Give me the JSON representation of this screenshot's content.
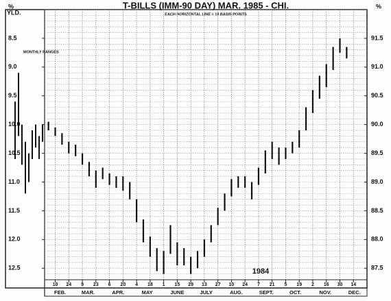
{
  "chart_data": {
    "type": "range_bar",
    "title": "T-BILLS (IMM-90 DAY) MAR. 1985 - CHI.",
    "subtitle": "EACH HORIZONTAL LINE = 10 BASIS POINTS",
    "y_label": [
      "%",
      "YLD."
    ],
    "y2_label": "%",
    "annotation": "1984",
    "color": "#111111",
    "grid": true,
    "grid_step": 0.1,
    "ylim": [
      12.7,
      8.0
    ],
    "yticks": [
      8.5,
      {
        "value": 9,
        "label": "9.0"
      },
      9.5,
      {
        "value": 10,
        "label": "10.0"
      },
      10.5,
      {
        "value": 11,
        "label": "11.0"
      },
      11.5,
      {
        "value": 12,
        "label": "12.0"
      },
      12.5
    ],
    "y2lim": [
      87.3,
      92.0
    ],
    "y2ticks": [
      91.5,
      {
        "value": 91,
        "label": "91.0"
      },
      90.5,
      {
        "value": 90,
        "label": "90.0"
      },
      89.5,
      {
        "value": 89,
        "label": "89.0"
      },
      88.5,
      {
        "value": 88,
        "label": "88.0"
      },
      87.5
    ],
    "xlim": [
      "1984-01-30",
      "1984-12-28"
    ],
    "xticks": [
      {
        "value": "1984-02-10",
        "label": "10"
      },
      {
        "value": "1984-02-24",
        "label": "24"
      },
      {
        "value": "1984-03-09",
        "label": "9"
      },
      {
        "value": "1984-03-23",
        "label": "23"
      },
      {
        "value": "1984-04-06",
        "label": "6"
      },
      {
        "value": "1984-04-20",
        "label": "20"
      },
      {
        "value": "1984-05-04",
        "label": "4"
      },
      {
        "value": "1984-05-18",
        "label": "18"
      },
      {
        "value": "1984-06-01",
        "label": "1"
      },
      {
        "value": "1984-06-15",
        "label": "15"
      },
      {
        "value": "1984-06-29",
        "label": "29"
      },
      {
        "value": "1984-07-13",
        "label": "13"
      },
      {
        "value": "1984-07-27",
        "label": "27"
      },
      {
        "value": "1984-08-10",
        "label": "10"
      },
      {
        "value": "1984-08-24",
        "label": "24"
      },
      {
        "value": "1984-09-07",
        "label": "7"
      },
      {
        "value": "1984-09-21",
        "label": "21"
      },
      {
        "value": "1984-10-05",
        "label": "5"
      },
      {
        "value": "1984-10-19",
        "label": "19"
      },
      {
        "value": "1984-11-02",
        "label": "2"
      },
      {
        "value": "1984-11-16",
        "label": "16"
      },
      {
        "value": "1984-11-30",
        "label": "30"
      },
      {
        "value": "1984-12-14",
        "label": "14"
      }
    ],
    "month_labels": [
      "FEB.",
      "MAR.",
      "APR.",
      "MAY",
      "JUNE",
      "JULY",
      "AUG.",
      "SEPT.",
      "OCT.",
      "NOV.",
      "DEC."
    ],
    "x": [
      "1984-02-03",
      "1984-02-10",
      "1984-02-17",
      "1984-02-24",
      "1984-03-02",
      "1984-03-09",
      "1984-03-16",
      "1984-03-23",
      "1984-03-30",
      "1984-04-06",
      "1984-04-13",
      "1984-04-20",
      "1984-04-27",
      "1984-05-04",
      "1984-05-11",
      "1984-05-18",
      "1984-05-25",
      "1984-06-01",
      "1984-06-08",
      "1984-06-15",
      "1984-06-22",
      "1984-06-29",
      "1984-07-06",
      "1984-07-13",
      "1984-07-20",
      "1984-07-27",
      "1984-08-03",
      "1984-08-10",
      "1984-08-17",
      "1984-08-24",
      "1984-08-31",
      "1984-09-07",
      "1984-09-14",
      "1984-09-21",
      "1984-09-28",
      "1984-10-05",
      "1984-10-12",
      "1984-10-19",
      "1984-10-26",
      "1984-11-02",
      "1984-11-09",
      "1984-11-16",
      "1984-11-23",
      "1984-11-30",
      "1984-12-07"
    ],
    "min": [
      9.95,
      10.05,
      10.15,
      10.3,
      10.35,
      10.5,
      10.65,
      10.8,
      10.75,
      10.85,
      10.9,
      10.9,
      11.0,
      11.3,
      11.65,
      11.95,
      12.15,
      12.2,
      11.75,
      12.05,
      12.15,
      12.3,
      12.2,
      12.0,
      11.75,
      11.45,
      11.2,
      10.95,
      10.9,
      10.9,
      11.0,
      10.75,
      10.45,
      10.3,
      10.4,
      10.4,
      10.3,
      10.1,
      9.7,
      9.4,
      9.15,
      8.95,
      8.65,
      8.5,
      8.65
    ],
    "max": [
      10.1,
      10.2,
      10.35,
      10.5,
      10.55,
      10.7,
      10.9,
      11.1,
      10.95,
      11.05,
      11.1,
      11.15,
      11.3,
      11.7,
      12.05,
      12.3,
      12.55,
      12.6,
      12.25,
      12.45,
      12.45,
      12.6,
      12.5,
      12.3,
      12.05,
      11.75,
      11.5,
      11.25,
      11.1,
      11.1,
      11.3,
      11.05,
      10.85,
      10.6,
      10.7,
      10.6,
      10.5,
      10.4,
      10.1,
      9.8,
      9.55,
      9.35,
      9.05,
      8.75,
      8.85
    ],
    "monthly_ranges": {
      "label": "MONTHLY RANGES",
      "min": [
        9.6,
        9.1,
        10.0,
        10.3,
        10.5,
        10.1,
        10.0,
        10.2,
        10.0
      ],
      "max": [
        10.6,
        10.2,
        10.7,
        11.2,
        11.0,
        10.6,
        10.4,
        10.6,
        10.3
      ]
    }
  }
}
